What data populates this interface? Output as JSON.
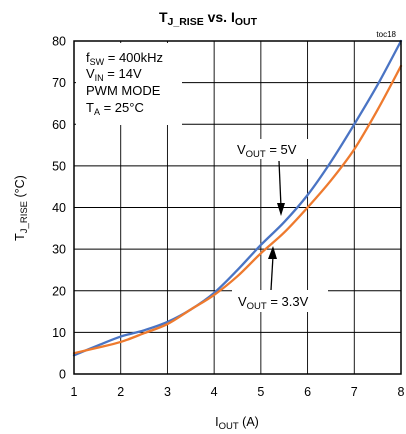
{
  "chart_data": {
    "type": "line",
    "title": {
      "main": "T",
      "main_sub": "J_RISE",
      "mid": " vs. I",
      "end_sub": "OUT"
    },
    "reference_tag": "toc18",
    "xlabel": {
      "main": "I",
      "sub": "OUT",
      "rest": " (A)"
    },
    "ylabel": {
      "main": "T",
      "sub": "J_RISE",
      "rest": " (°C)"
    },
    "xlim": [
      1,
      8
    ],
    "ylim": [
      0,
      80
    ],
    "xticks": [
      1,
      2,
      3,
      4,
      5,
      6,
      7,
      8
    ],
    "yticks": [
      0,
      10,
      20,
      30,
      40,
      50,
      60,
      70,
      80
    ],
    "grid": true,
    "conditions": [
      {
        "main": "f",
        "sub": "SW",
        "rest": " = 400kHz"
      },
      {
        "main": "V",
        "sub": "IN",
        "rest": " = 14V"
      },
      {
        "main": "PWM MODE",
        "sub": "",
        "rest": ""
      },
      {
        "main": "T",
        "sub": "A",
        "rest": " = 25°C"
      }
    ],
    "series": [
      {
        "label": {
          "main": "V",
          "sub": "OUT",
          "rest": " = 5V"
        },
        "color": "#4a74c4",
        "x": [
          1,
          1.5,
          2,
          2.5,
          3,
          3.5,
          4,
          4.5,
          5,
          5.5,
          6,
          6.5,
          7,
          7.5,
          8
        ],
        "y": [
          4.5,
          6.8,
          9,
          10.5,
          12.5,
          15.5,
          19.5,
          25,
          31,
          36.5,
          43,
          51,
          60,
          69.5,
          80
        ]
      },
      {
        "label": {
          "main": "V",
          "sub": "OUT",
          "rest": " = 3.3V"
        },
        "color": "#ee7a2e",
        "x": [
          1,
          1.5,
          2,
          2.5,
          3,
          3.5,
          4,
          4.5,
          5,
          5.5,
          6,
          6.5,
          7,
          7.5,
          8
        ],
        "y": [
          5,
          6.3,
          7.7,
          9.8,
          12,
          15.5,
          19,
          23.5,
          29,
          34,
          40,
          46.5,
          54,
          63.5,
          74
        ]
      }
    ]
  }
}
